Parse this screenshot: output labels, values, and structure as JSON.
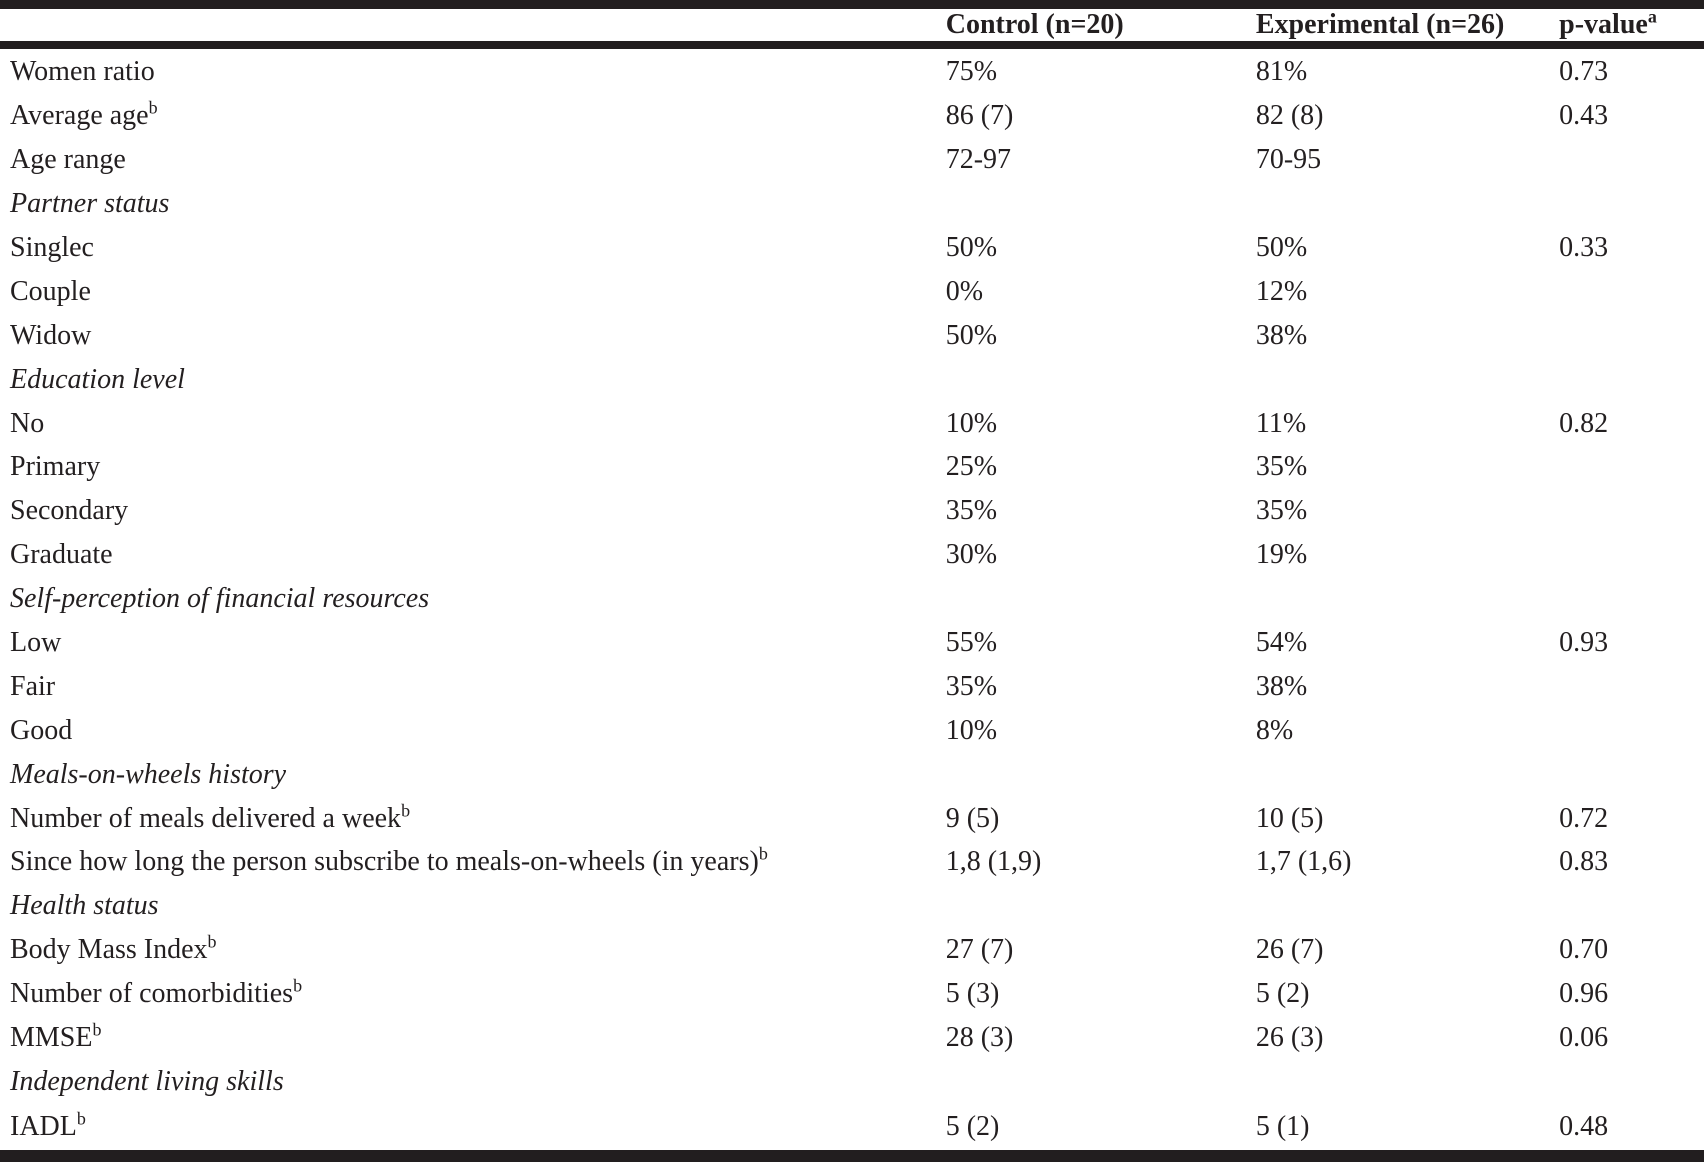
{
  "table": {
    "header": {
      "label": "",
      "control": "Control (n=20)",
      "experimental": "Experimental (n=26)",
      "p_value": "p-value",
      "p_value_sup": "a"
    },
    "rows": [
      {
        "type": "data",
        "label": "Women ratio",
        "sup": "",
        "control": "75%",
        "experimental": "81%",
        "p_value": "0.73"
      },
      {
        "type": "data",
        "label": "Average age",
        "sup": "b",
        "control": "86 (7)",
        "experimental": "82 (8)",
        "p_value": "0.43"
      },
      {
        "type": "data",
        "label": "Age range",
        "sup": "",
        "control": "72-97",
        "experimental": "70-95",
        "p_value": ""
      },
      {
        "type": "section",
        "label": "Partner status",
        "sup": "",
        "control": "",
        "experimental": "",
        "p_value": ""
      },
      {
        "type": "data",
        "label": "Singlec",
        "sup": "",
        "control": "50%",
        "experimental": "50%",
        "p_value": "0.33"
      },
      {
        "type": "data",
        "label": "Couple",
        "sup": "",
        "control": "0%",
        "experimental": "12%",
        "p_value": ""
      },
      {
        "type": "data",
        "label": "Widow",
        "sup": "",
        "control": "50%",
        "experimental": "38%",
        "p_value": ""
      },
      {
        "type": "section",
        "label": "Education level",
        "sup": "",
        "control": "",
        "experimental": "",
        "p_value": ""
      },
      {
        "type": "data",
        "label": "No",
        "sup": "",
        "control": "10%",
        "experimental": "11%",
        "p_value": "0.82"
      },
      {
        "type": "data",
        "label": "Primary",
        "sup": "",
        "control": "25%",
        "experimental": "35%",
        "p_value": ""
      },
      {
        "type": "data",
        "label": "Secondary",
        "sup": "",
        "control": "35%",
        "experimental": "35%",
        "p_value": ""
      },
      {
        "type": "data",
        "label": "Graduate",
        "sup": "",
        "control": "30%",
        "experimental": "19%",
        "p_value": ""
      },
      {
        "type": "section",
        "label": "Self-perception of financial resources",
        "sup": "",
        "control": "",
        "experimental": "",
        "p_value": ""
      },
      {
        "type": "data",
        "label": "Low",
        "sup": "",
        "control": "55%",
        "experimental": "54%",
        "p_value": "0.93"
      },
      {
        "type": "data",
        "label": "Fair",
        "sup": "",
        "control": "35%",
        "experimental": "38%",
        "p_value": ""
      },
      {
        "type": "data",
        "label": "Good",
        "sup": "",
        "control": "10%",
        "experimental": "8%",
        "p_value": ""
      },
      {
        "type": "section",
        "label": "Meals-on-wheels history",
        "sup": "",
        "control": "",
        "experimental": "",
        "p_value": ""
      },
      {
        "type": "data",
        "label": "Number of meals delivered a week",
        "sup": "b",
        "control": "9 (5)",
        "experimental": "10 (5)",
        "p_value": "0.72"
      },
      {
        "type": "data",
        "label": "Since how long the person subscribe to meals-on-wheels (in years)",
        "sup": "b",
        "control": "1,8 (1,9)",
        "experimental": "1,7 (1,6)",
        "p_value": "0.83"
      },
      {
        "type": "section",
        "label": "Health status",
        "sup": "",
        "control": "",
        "experimental": "",
        "p_value": ""
      },
      {
        "type": "data",
        "label": "Body Mass Index",
        "sup": "b",
        "control": "27 (7)",
        "experimental": "26 (7)",
        "p_value": "0.70"
      },
      {
        "type": "data",
        "label": "Number of comorbidities",
        "sup": "b",
        "control": "5 (3)",
        "experimental": "5 (2)",
        "p_value": "0.96"
      },
      {
        "type": "data",
        "label": "MMSE",
        "sup": "b",
        "control": "28 (3)",
        "experimental": "26 (3)",
        "p_value": "0.06"
      },
      {
        "type": "section",
        "label": "Independent living skills",
        "sup": "",
        "control": "",
        "experimental": "",
        "p_value": ""
      },
      {
        "type": "data",
        "label": "IADL",
        "sup": "b",
        "control": "5 (2)",
        "experimental": "5 (1)",
        "p_value": "0.48"
      }
    ]
  }
}
